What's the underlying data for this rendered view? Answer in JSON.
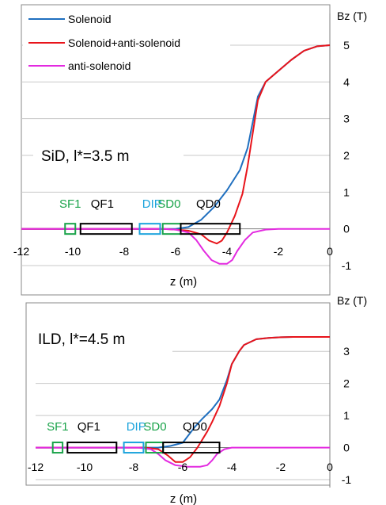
{
  "chart_data": [
    {
      "type": "line",
      "title": "",
      "annotation": "SiD, l*=3.5 m",
      "xlabel": "z (m)",
      "ylabel": "Bz (T)",
      "xlim": [
        -12,
        0
      ],
      "ylim": [
        -1,
        5
      ],
      "xticks": [
        "-12",
        "-10",
        "-8",
        "-6",
        "-4",
        "-2",
        "0"
      ],
      "yticks": [
        "5",
        "4",
        "3",
        "2",
        "1",
        "0",
        "-1"
      ],
      "grid": true,
      "legend_position": "top-left",
      "legend": [
        "Solenoid",
        "Solenoid+anti-solenoid",
        "anti-solenoid"
      ],
      "colors": {
        "solenoid": "#1f6fbf",
        "combined": "#e8141b",
        "anti": "#e32ae0",
        "green_box": "#1aa34a",
        "blue_box": "#1ba3dc",
        "black_box": "#000000"
      },
      "series": [
        {
          "name": "Solenoid",
          "x": [
            -12,
            -7,
            -6,
            -5.5,
            -5,
            -4.5,
            -4,
            -3.5,
            -3.2,
            -3.0,
            -2.8,
            -2.5,
            -2,
            -1.5,
            -1,
            -0.5,
            0
          ],
          "y": [
            0,
            0,
            0,
            0.05,
            0.25,
            0.6,
            1.05,
            1.6,
            2.2,
            2.9,
            3.6,
            4.0,
            4.3,
            4.6,
            4.85,
            4.97,
            5.0
          ]
        },
        {
          "name": "Solenoid+anti-solenoid",
          "x": [
            -12,
            -6.5,
            -6,
            -5.5,
            -5,
            -4.7,
            -4.4,
            -4.2,
            -4.0,
            -3.7,
            -3.4,
            -3.2,
            -3.0,
            -2.8,
            -2.5,
            -2,
            -1.5,
            -1,
            -0.5,
            0
          ],
          "y": [
            0,
            0,
            -0.02,
            -0.05,
            -0.15,
            -0.32,
            -0.4,
            -0.32,
            -0.1,
            0.35,
            0.95,
            1.7,
            2.6,
            3.5,
            4.0,
            4.3,
            4.6,
            4.85,
            4.97,
            5.0
          ]
        },
        {
          "name": "anti-solenoid",
          "x": [
            -12,
            -6.5,
            -6,
            -5.5,
            -5.2,
            -4.9,
            -4.6,
            -4.3,
            -4.0,
            -3.8,
            -3.6,
            -3.3,
            -3.0,
            -2.5,
            -2,
            0
          ],
          "y": [
            0,
            0,
            -0.02,
            -0.1,
            -0.3,
            -0.6,
            -0.85,
            -0.95,
            -0.95,
            -0.85,
            -0.6,
            -0.3,
            -0.1,
            -0.02,
            0,
            0
          ]
        }
      ],
      "magnets": [
        {
          "label": "SF1",
          "color": "green",
          "z0": -10.3,
          "z1": -9.9
        },
        {
          "label": "QF1",
          "color": "black",
          "z0": -9.7,
          "z1": -7.7
        },
        {
          "label": "DIP",
          "color": "blue",
          "z0": -7.4,
          "z1": -6.6
        },
        {
          "label": "SD0",
          "color": "green",
          "z0": -6.5,
          "z1": -5.8
        },
        {
          "label": "QD0",
          "color": "black",
          "z0": -5.8,
          "z1": -3.5
        }
      ]
    },
    {
      "type": "line",
      "title": "",
      "annotation": "ILD, l*=4.5 m",
      "xlabel": "z (m)",
      "ylabel": "Bz (T)",
      "xlim": [
        -12,
        0
      ],
      "ylim": [
        -1,
        3.5
      ],
      "xticks": [
        "-12",
        "-10",
        "-8",
        "-6",
        "-4",
        "-2",
        "0"
      ],
      "yticks": [
        "3",
        "2",
        "1",
        "0",
        "-1"
      ],
      "grid": true,
      "legend_position": "none",
      "series": [
        {
          "name": "Solenoid",
          "x": [
            -12,
            -7,
            -6.5,
            -6.0,
            -5.8,
            -5.5,
            -5.2,
            -5.0,
            -4.8,
            -4.5,
            -4.2,
            -4.0,
            -3.7,
            -3.5,
            -3.0,
            -2.5,
            -2,
            -1.5,
            0
          ],
          "y": [
            0,
            0,
            0.05,
            0.15,
            0.35,
            0.65,
            0.9,
            1.05,
            1.2,
            1.5,
            2.1,
            2.6,
            3.0,
            3.2,
            3.38,
            3.42,
            3.44,
            3.45,
            3.45
          ]
        },
        {
          "name": "Solenoid+anti-solenoid",
          "x": [
            -12,
            -7.5,
            -7,
            -6.6,
            -6.3,
            -6.0,
            -5.7,
            -5.4,
            -5.0,
            -4.8,
            -4.5,
            -4.2,
            -4.0,
            -3.7,
            -3.5,
            -3.0,
            -2.5,
            -2,
            -1.5,
            0
          ],
          "y": [
            0,
            0,
            -0.05,
            -0.25,
            -0.45,
            -0.45,
            -0.3,
            0.0,
            0.5,
            0.8,
            1.3,
            2.0,
            2.6,
            3.0,
            3.2,
            3.38,
            3.42,
            3.44,
            3.45,
            3.45
          ]
        },
        {
          "name": "anti-solenoid",
          "x": [
            -12,
            -7.8,
            -7.3,
            -7.0,
            -6.7,
            -6.3,
            -5.8,
            -5.3,
            -5.0,
            -4.8,
            -4.6,
            -4.3,
            -4.0,
            -3.5,
            -2,
            0
          ],
          "y": [
            0,
            0,
            -0.05,
            -0.2,
            -0.4,
            -0.55,
            -0.6,
            -0.6,
            -0.55,
            -0.4,
            -0.2,
            -0.05,
            0,
            0,
            0,
            0
          ]
        }
      ],
      "magnets": [
        {
          "label": "SF1",
          "color": "green",
          "z0": -11.3,
          "z1": -10.9
        },
        {
          "label": "QF1",
          "color": "black",
          "z0": -10.7,
          "z1": -8.7
        },
        {
          "label": "DIP",
          "color": "blue",
          "z0": -8.4,
          "z1": -7.6
        },
        {
          "label": "SD0",
          "color": "green",
          "z0": -7.5,
          "z1": -6.8
        },
        {
          "label": "QD0",
          "color": "black",
          "z0": -6.8,
          "z1": -4.5
        }
      ]
    }
  ]
}
